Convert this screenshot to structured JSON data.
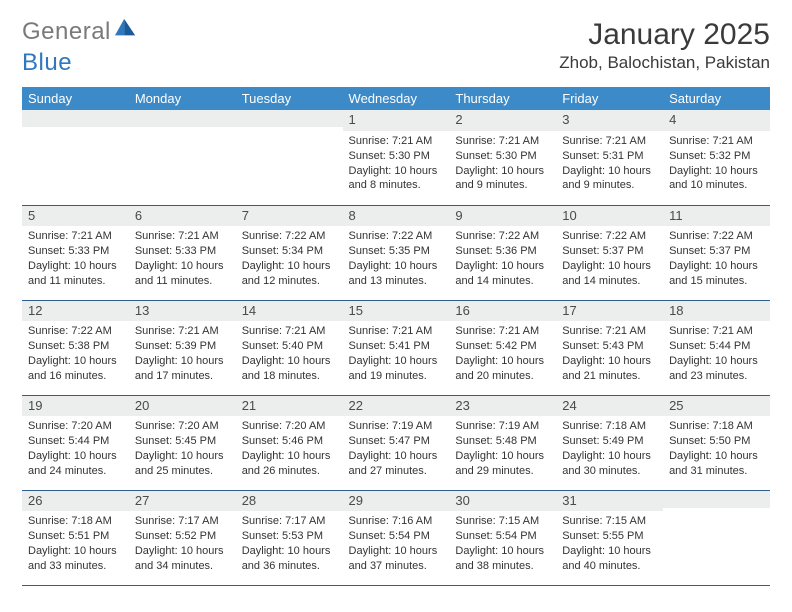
{
  "brand": {
    "part1": "General",
    "part2": "Blue"
  },
  "title": "January 2025",
  "location": "Zhob, Balochistan, Pakistan",
  "colors": {
    "header_bg": "#3c8ac8",
    "header_text": "#ffffff",
    "daynum_bg": "#eceded",
    "row_border": "#2f5e8c",
    "brand_gray": "#7a7a7a",
    "brand_blue": "#2f78bf",
    "text": "#333333",
    "background": "#ffffff"
  },
  "fonts": {
    "title_size_pt": 30,
    "location_size_pt": 17,
    "weekday_size_pt": 13,
    "daynum_size_pt": 13,
    "body_size_pt": 11
  },
  "weekdays": [
    "Sunday",
    "Monday",
    "Tuesday",
    "Wednesday",
    "Thursday",
    "Friday",
    "Saturday"
  ],
  "weeks": [
    [
      {
        "n": "",
        "sunrise": "",
        "sunset": "",
        "daylight": ""
      },
      {
        "n": "",
        "sunrise": "",
        "sunset": "",
        "daylight": ""
      },
      {
        "n": "",
        "sunrise": "",
        "sunset": "",
        "daylight": ""
      },
      {
        "n": "1",
        "sunrise": "Sunrise: 7:21 AM",
        "sunset": "Sunset: 5:30 PM",
        "daylight": "Daylight: 10 hours and 8 minutes."
      },
      {
        "n": "2",
        "sunrise": "Sunrise: 7:21 AM",
        "sunset": "Sunset: 5:30 PM",
        "daylight": "Daylight: 10 hours and 9 minutes."
      },
      {
        "n": "3",
        "sunrise": "Sunrise: 7:21 AM",
        "sunset": "Sunset: 5:31 PM",
        "daylight": "Daylight: 10 hours and 9 minutes."
      },
      {
        "n": "4",
        "sunrise": "Sunrise: 7:21 AM",
        "sunset": "Sunset: 5:32 PM",
        "daylight": "Daylight: 10 hours and 10 minutes."
      }
    ],
    [
      {
        "n": "5",
        "sunrise": "Sunrise: 7:21 AM",
        "sunset": "Sunset: 5:33 PM",
        "daylight": "Daylight: 10 hours and 11 minutes."
      },
      {
        "n": "6",
        "sunrise": "Sunrise: 7:21 AM",
        "sunset": "Sunset: 5:33 PM",
        "daylight": "Daylight: 10 hours and 11 minutes."
      },
      {
        "n": "7",
        "sunrise": "Sunrise: 7:22 AM",
        "sunset": "Sunset: 5:34 PM",
        "daylight": "Daylight: 10 hours and 12 minutes."
      },
      {
        "n": "8",
        "sunrise": "Sunrise: 7:22 AM",
        "sunset": "Sunset: 5:35 PM",
        "daylight": "Daylight: 10 hours and 13 minutes."
      },
      {
        "n": "9",
        "sunrise": "Sunrise: 7:22 AM",
        "sunset": "Sunset: 5:36 PM",
        "daylight": "Daylight: 10 hours and 14 minutes."
      },
      {
        "n": "10",
        "sunrise": "Sunrise: 7:22 AM",
        "sunset": "Sunset: 5:37 PM",
        "daylight": "Daylight: 10 hours and 14 minutes."
      },
      {
        "n": "11",
        "sunrise": "Sunrise: 7:22 AM",
        "sunset": "Sunset: 5:37 PM",
        "daylight": "Daylight: 10 hours and 15 minutes."
      }
    ],
    [
      {
        "n": "12",
        "sunrise": "Sunrise: 7:22 AM",
        "sunset": "Sunset: 5:38 PM",
        "daylight": "Daylight: 10 hours and 16 minutes."
      },
      {
        "n": "13",
        "sunrise": "Sunrise: 7:21 AM",
        "sunset": "Sunset: 5:39 PM",
        "daylight": "Daylight: 10 hours and 17 minutes."
      },
      {
        "n": "14",
        "sunrise": "Sunrise: 7:21 AM",
        "sunset": "Sunset: 5:40 PM",
        "daylight": "Daylight: 10 hours and 18 minutes."
      },
      {
        "n": "15",
        "sunrise": "Sunrise: 7:21 AM",
        "sunset": "Sunset: 5:41 PM",
        "daylight": "Daylight: 10 hours and 19 minutes."
      },
      {
        "n": "16",
        "sunrise": "Sunrise: 7:21 AM",
        "sunset": "Sunset: 5:42 PM",
        "daylight": "Daylight: 10 hours and 20 minutes."
      },
      {
        "n": "17",
        "sunrise": "Sunrise: 7:21 AM",
        "sunset": "Sunset: 5:43 PM",
        "daylight": "Daylight: 10 hours and 21 minutes."
      },
      {
        "n": "18",
        "sunrise": "Sunrise: 7:21 AM",
        "sunset": "Sunset: 5:44 PM",
        "daylight": "Daylight: 10 hours and 23 minutes."
      }
    ],
    [
      {
        "n": "19",
        "sunrise": "Sunrise: 7:20 AM",
        "sunset": "Sunset: 5:44 PM",
        "daylight": "Daylight: 10 hours and 24 minutes."
      },
      {
        "n": "20",
        "sunrise": "Sunrise: 7:20 AM",
        "sunset": "Sunset: 5:45 PM",
        "daylight": "Daylight: 10 hours and 25 minutes."
      },
      {
        "n": "21",
        "sunrise": "Sunrise: 7:20 AM",
        "sunset": "Sunset: 5:46 PM",
        "daylight": "Daylight: 10 hours and 26 minutes."
      },
      {
        "n": "22",
        "sunrise": "Sunrise: 7:19 AM",
        "sunset": "Sunset: 5:47 PM",
        "daylight": "Daylight: 10 hours and 27 minutes."
      },
      {
        "n": "23",
        "sunrise": "Sunrise: 7:19 AM",
        "sunset": "Sunset: 5:48 PM",
        "daylight": "Daylight: 10 hours and 29 minutes."
      },
      {
        "n": "24",
        "sunrise": "Sunrise: 7:18 AM",
        "sunset": "Sunset: 5:49 PM",
        "daylight": "Daylight: 10 hours and 30 minutes."
      },
      {
        "n": "25",
        "sunrise": "Sunrise: 7:18 AM",
        "sunset": "Sunset: 5:50 PM",
        "daylight": "Daylight: 10 hours and 31 minutes."
      }
    ],
    [
      {
        "n": "26",
        "sunrise": "Sunrise: 7:18 AM",
        "sunset": "Sunset: 5:51 PM",
        "daylight": "Daylight: 10 hours and 33 minutes."
      },
      {
        "n": "27",
        "sunrise": "Sunrise: 7:17 AM",
        "sunset": "Sunset: 5:52 PM",
        "daylight": "Daylight: 10 hours and 34 minutes."
      },
      {
        "n": "28",
        "sunrise": "Sunrise: 7:17 AM",
        "sunset": "Sunset: 5:53 PM",
        "daylight": "Daylight: 10 hours and 36 minutes."
      },
      {
        "n": "29",
        "sunrise": "Sunrise: 7:16 AM",
        "sunset": "Sunset: 5:54 PM",
        "daylight": "Daylight: 10 hours and 37 minutes."
      },
      {
        "n": "30",
        "sunrise": "Sunrise: 7:15 AM",
        "sunset": "Sunset: 5:54 PM",
        "daylight": "Daylight: 10 hours and 38 minutes."
      },
      {
        "n": "31",
        "sunrise": "Sunrise: 7:15 AM",
        "sunset": "Sunset: 5:55 PM",
        "daylight": "Daylight: 10 hours and 40 minutes."
      },
      {
        "n": "",
        "sunrise": "",
        "sunset": "",
        "daylight": ""
      }
    ]
  ]
}
